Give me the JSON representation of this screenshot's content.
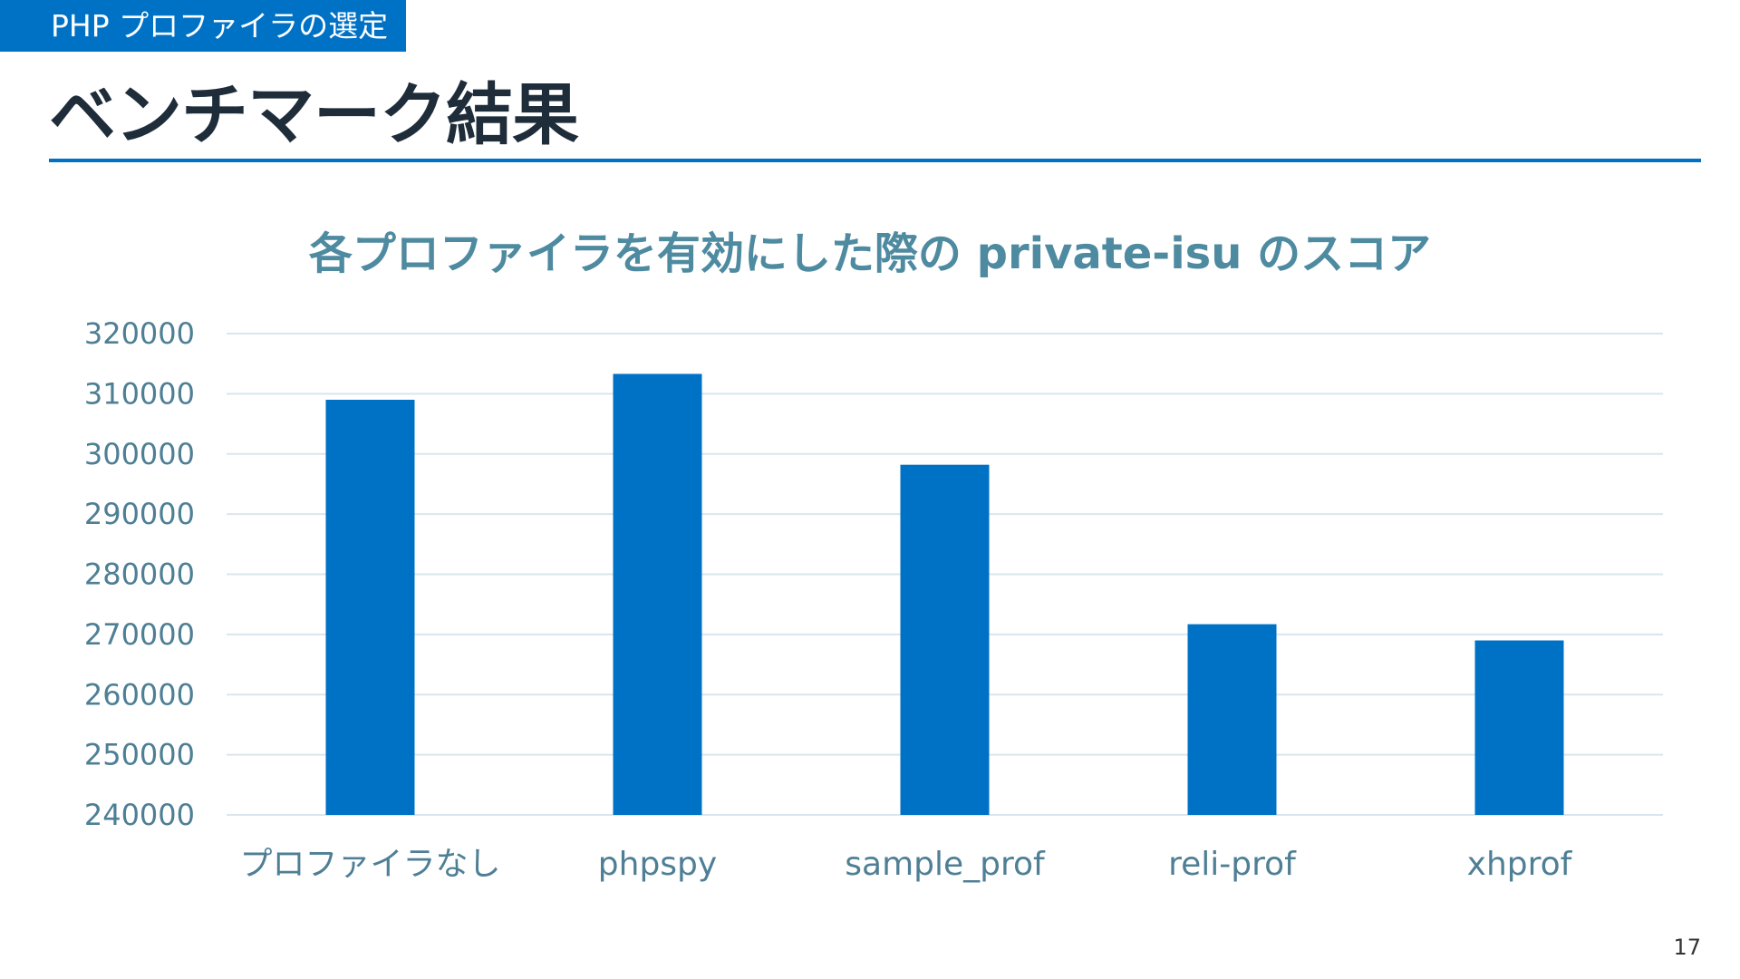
{
  "slide": {
    "section": "PHP プロファイラの選定",
    "title": "ベンチマーク結果",
    "page_number": "17"
  },
  "colors": {
    "accent": "#0072c6",
    "bar": "#0072c6",
    "title_text": "#1f2d3a",
    "chart_title_text": "#4e8aa0",
    "axis_text": "#4e7f95",
    "gridline": "#d9e6ee"
  },
  "chart_data": {
    "type": "bar",
    "title": "各プロファイラを有効にした際の private-isu のスコア",
    "xlabel": "",
    "ylabel": "",
    "categories": [
      "プロファイラなし",
      "phpspy",
      "sample_prof",
      "reli-prof",
      "xhprof"
    ],
    "values": [
      309000,
      313300,
      298200,
      271700,
      269000
    ],
    "ylim": [
      240000,
      320000
    ],
    "yticks": [
      240000,
      250000,
      260000,
      270000,
      280000,
      290000,
      300000,
      310000,
      320000
    ],
    "grid": true,
    "legend": "none"
  }
}
